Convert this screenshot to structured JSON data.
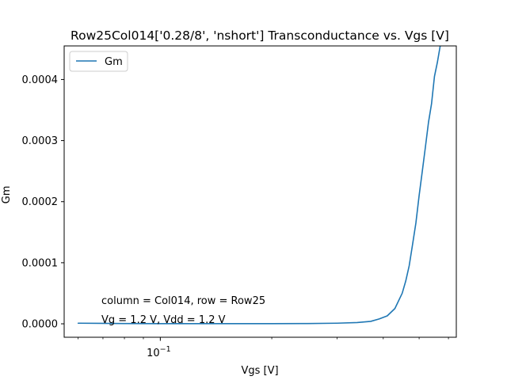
{
  "chart_data": {
    "type": "line",
    "title": "Row25Col014['0.28/8', 'nshort'] Transconductance vs. Vgs [V]",
    "xlabel": "Vgs [V]",
    "ylabel": "Gm",
    "xscale": "log",
    "xlim": [
      0.055,
      0.63
    ],
    "ylim": [
      -2.2e-05,
      0.000455
    ],
    "x_major_ticks": [
      {
        "value": 0.1,
        "base": "10",
        "exponent": "−1"
      }
    ],
    "x_minor_ticks": [
      0.06,
      0.07,
      0.08,
      0.09,
      0.2,
      0.3,
      0.4,
      0.5,
      0.6
    ],
    "y_ticks": [
      {
        "value": 0.0,
        "label": "0.0000"
      },
      {
        "value": 0.0001,
        "label": "0.0001"
      },
      {
        "value": 0.0002,
        "label": "0.0002"
      },
      {
        "value": 0.0003,
        "label": "0.0003"
      },
      {
        "value": 0.0004,
        "label": "0.0004"
      }
    ],
    "grid": false,
    "legend": {
      "position": "upper-left"
    },
    "series": [
      {
        "name": "Gm",
        "color": "#1f77b4",
        "x": [
          0.06,
          0.08,
          0.1,
          0.15,
          0.2,
          0.25,
          0.3,
          0.34,
          0.37,
          0.39,
          0.41,
          0.43,
          0.45,
          0.46,
          0.47,
          0.48,
          0.49,
          0.5,
          0.51,
          0.52,
          0.53,
          0.54,
          0.55,
          0.56,
          0.57,
          0.58,
          0.59,
          0.6
        ],
        "y": [
          1e-06,
          5e-07,
          3e-07,
          3e-07,
          3e-07,
          4e-07,
          1e-06,
          2e-06,
          4e-06,
          8e-06,
          1.3e-05,
          2.5e-05,
          5e-05,
          7e-05,
          9.5e-05,
          0.00013,
          0.000165,
          0.00021,
          0.00025,
          0.00029,
          0.00033,
          0.00036,
          0.000405,
          0.000428,
          0.000455,
          0.00048,
          0.0005,
          0.00052
        ]
      }
    ],
    "annotations": [
      "column = Col014, row = Row25",
      "Vg = 1.2 V, Vdd = 1.2 V"
    ]
  }
}
